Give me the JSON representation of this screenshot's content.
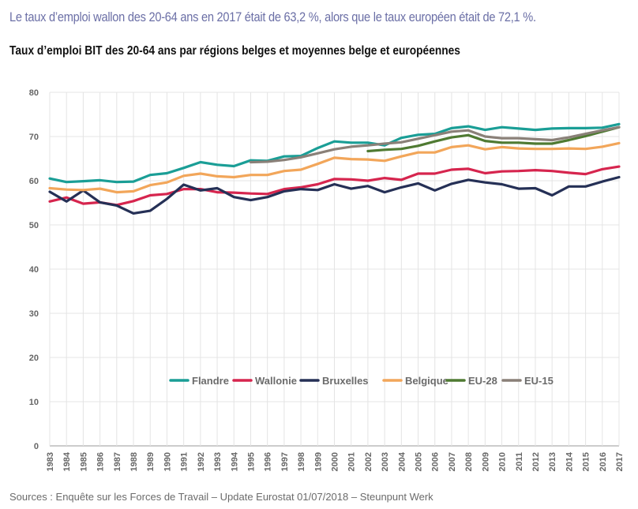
{
  "intro_text": "Le taux d’emploi wallon des 20-64 ans en 2017 était de 63,2 %, alors que le taux européen était de 72,1 %.",
  "source_text": "Sources : Enquête sur les Forces de Travail – Update Eurostat 01/07/2018 – Steunpunt Werk",
  "chart_data": {
    "type": "line",
    "title": "Taux d’emploi BIT des 20-64 ans par régions belges et moyennes belge et européennes",
    "xlabel": "",
    "ylabel": "",
    "ylim": [
      0,
      80
    ],
    "yticks": [
      0,
      10,
      20,
      30,
      40,
      50,
      60,
      70,
      80
    ],
    "grid": true,
    "legend_position": "center",
    "categories": [
      "1983",
      "1984",
      "1985",
      "1986",
      "1987",
      "1988",
      "1989",
      "1990",
      "1991",
      "1992",
      "1993",
      "1994",
      "1995",
      "1996",
      "1997",
      "1998",
      "1999",
      "2000",
      "2001",
      "2002",
      "2003",
      "2004",
      "2005",
      "2006",
      "2007",
      "2008",
      "2009",
      "2010",
      "2011",
      "2012",
      "2013",
      "2014",
      "2015",
      "2016",
      "2017"
    ],
    "series": [
      {
        "name": "Flandre",
        "color": "#1a9e96",
        "values": [
          60.5,
          59.7,
          59.9,
          60.1,
          59.7,
          59.8,
          61.3,
          61.7,
          62.9,
          64.2,
          63.6,
          63.3,
          64.6,
          64.5,
          65.5,
          65.6,
          67.4,
          68.9,
          68.6,
          68.6,
          68.0,
          69.7,
          70.4,
          70.6,
          71.9,
          72.3,
          71.5,
          72.1,
          71.8,
          71.5,
          71.8,
          71.9,
          71.9,
          72.0,
          72.8
        ]
      },
      {
        "name": "Wallonie",
        "color": "#d6254e",
        "values": [
          55.3,
          56.2,
          54.8,
          55.1,
          54.5,
          55.4,
          56.7,
          57.0,
          58.1,
          58.1,
          57.4,
          57.3,
          57.1,
          57.0,
          58.1,
          58.5,
          59.2,
          60.4,
          60.3,
          60.0,
          60.6,
          60.2,
          61.6,
          61.6,
          62.5,
          62.7,
          61.7,
          62.1,
          62.2,
          62.4,
          62.2,
          61.8,
          61.5,
          62.6,
          63.2
        ]
      },
      {
        "name": "Bruxelles",
        "color": "#253056",
        "values": [
          57.5,
          55.3,
          57.8,
          55.1,
          54.4,
          52.6,
          53.2,
          55.9,
          59.1,
          57.8,
          58.3,
          56.3,
          55.6,
          56.3,
          57.6,
          58.1,
          57.9,
          59.2,
          58.2,
          58.8,
          57.4,
          58.5,
          59.4,
          57.8,
          59.3,
          60.2,
          59.6,
          59.2,
          58.2,
          58.3,
          56.7,
          58.7,
          58.7,
          59.8,
          60.8
        ]
      },
      {
        "name": "Belgique",
        "color": "#f2a65a",
        "values": [
          58.3,
          58.0,
          57.9,
          58.2,
          57.4,
          57.6,
          59.0,
          59.6,
          61.1,
          61.6,
          61.0,
          60.8,
          61.3,
          61.3,
          62.2,
          62.5,
          63.8,
          65.2,
          64.9,
          64.8,
          64.5,
          65.5,
          66.4,
          66.4,
          67.6,
          68.0,
          67.1,
          67.6,
          67.3,
          67.2,
          67.2,
          67.3,
          67.2,
          67.7,
          68.5
        ]
      },
      {
        "name": "EU-28",
        "color": "#4f7a32",
        "values": [
          null,
          null,
          null,
          null,
          null,
          null,
          null,
          null,
          null,
          null,
          null,
          null,
          null,
          null,
          null,
          null,
          null,
          null,
          null,
          66.7,
          67.0,
          67.2,
          67.9,
          68.9,
          69.8,
          70.3,
          69.0,
          68.6,
          68.6,
          68.4,
          68.4,
          69.2,
          70.1,
          71.1,
          72.1
        ]
      },
      {
        "name": "EU-15",
        "color": "#8a8078",
        "values": [
          null,
          null,
          null,
          null,
          null,
          null,
          null,
          null,
          null,
          null,
          null,
          null,
          64.2,
          64.3,
          64.7,
          65.3,
          66.2,
          67.1,
          67.7,
          68.0,
          68.4,
          68.7,
          69.5,
          70.3,
          71.1,
          71.4,
          70.0,
          69.6,
          69.6,
          69.4,
          69.2,
          69.8,
          70.6,
          71.4,
          72.1
        ]
      }
    ]
  }
}
